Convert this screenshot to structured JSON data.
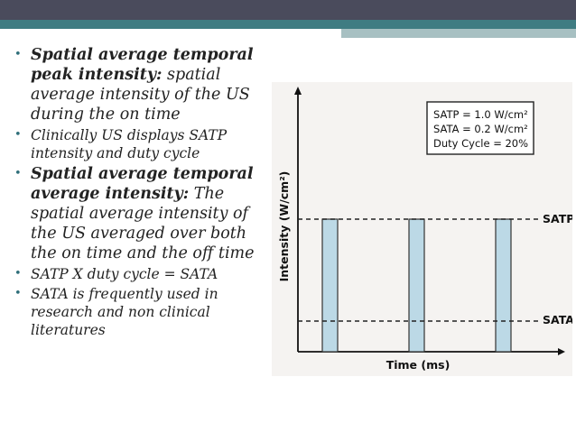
{
  "bullets": [
    {
      "bold": "Spatial average temporal peak intensity:",
      "text": " spatial average intensity of the US during the on time",
      "big": true
    },
    {
      "bold": "",
      "text": "Clinically US displays SATP intensity and duty cycle",
      "big": false
    },
    {
      "bold": "Spatial average temporal average intensity:",
      "text": " The spatial average intensity of the US averaged over both the on time and the off time",
      "big": true
    },
    {
      "bold": "",
      "text": "SATP X duty cycle = SATA",
      "big": false
    },
    {
      "bold": "",
      "text": "SATA is frequently used in research and non clinical literatures",
      "big": false
    }
  ],
  "figure": {
    "legend": [
      "SATP = 1.0 W/cm²",
      "SATA = 0.2 W/cm²",
      "Duty Cycle = 20%"
    ],
    "ylabel": "Intensity (W/cm²)",
    "xlabel": "Time (ms)",
    "line_labels": {
      "satp": "SATP",
      "sata": "SATA"
    }
  },
  "chart_data": {
    "type": "bar",
    "values": [
      1.0,
      1.0,
      1.0
    ],
    "reference_lines": [
      {
        "name": "SATP",
        "value": 1.0
      },
      {
        "name": "SATA",
        "value": 0.2
      }
    ],
    "duty_cycle": 0.2,
    "xlabel": "Time (ms)",
    "ylabel": "Intensity (W/cm²)",
    "colors": {
      "bar": "#bcd9e6",
      "line": "#222222",
      "axis": "#111111"
    }
  }
}
